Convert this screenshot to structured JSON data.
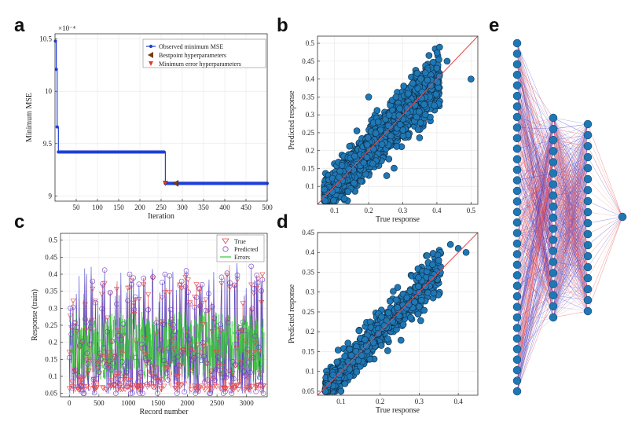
{
  "panels": {
    "a": "a",
    "b": "b",
    "c": "c",
    "d": "d",
    "e": "e"
  },
  "chart_data": [
    {
      "id": "a",
      "type": "line",
      "xlabel": "Iteration",
      "ylabel": "Minimum MSE",
      "y_multiplier": "×10⁻⁴",
      "xlim": [
        0,
        500
      ],
      "ylim": [
        8.95,
        10.55
      ],
      "xticks": [
        50,
        100,
        150,
        200,
        250,
        300,
        350,
        400,
        450,
        500
      ],
      "yticks": [
        9,
        9.5,
        10,
        10.5
      ],
      "grid": true,
      "legend_position": "top-right",
      "series": [
        {
          "name": "Observed minimum MSE",
          "color": "#1f3fd6",
          "marker": "circle",
          "steps": [
            [
              1,
              10.48
            ],
            [
              3,
              10.21
            ],
            [
              5,
              9.66
            ],
            [
              8,
              9.42
            ],
            [
              260,
              9.12
            ],
            [
              500,
              9.12
            ]
          ]
        },
        {
          "name": "Bestpoint hyperparameters",
          "color": "#7a3b12",
          "marker": "triangle-left",
          "points": [
            [
              285,
              9.12
            ]
          ]
        },
        {
          "name": "Minimum error hyperparameters",
          "color": "#e23b2a",
          "marker": "triangle-down",
          "points": [
            [
              260,
              9.12
            ]
          ]
        }
      ]
    },
    {
      "id": "b",
      "type": "scatter",
      "xlabel": "True response",
      "ylabel": "Predicted response",
      "xlim": [
        0.05,
        0.52
      ],
      "ylim": [
        0.05,
        0.52
      ],
      "xticks": [
        0.1,
        0.2,
        0.3,
        0.4,
        0.5
      ],
      "yticks": [
        0.1,
        0.15,
        0.2,
        0.25,
        0.3,
        0.35,
        0.4,
        0.45,
        0.5
      ],
      "grid": true,
      "point_color": "#1f77b4",
      "reference_line": "y=x",
      "reference_color": "#e8474a",
      "n_points": 2400,
      "points_outlier": [
        [
          0.5,
          0.4
        ],
        [
          0.43,
          0.45
        ],
        [
          0.4,
          0.43
        ],
        [
          0.28,
          0.35
        ],
        [
          0.2,
          0.35
        ]
      ]
    },
    {
      "id": "c",
      "type": "line",
      "xlabel": "Record number",
      "ylabel": "Response (train)",
      "xlim": [
        -150,
        3350
      ],
      "ylim": [
        0.04,
        0.52
      ],
      "xticks": [
        0,
        500,
        1000,
        1500,
        2000,
        2500,
        3000
      ],
      "yticks": [
        0.05,
        0.1,
        0.15,
        0.2,
        0.25,
        0.3,
        0.35,
        0.4,
        0.45,
        0.5
      ],
      "grid": true,
      "legend_position": "top-right",
      "series": [
        {
          "name": "True",
          "color": "#e8474a",
          "marker": "triangle-down"
        },
        {
          "name": "Predicted",
          "color": "#7b3fc4",
          "marker": "circle"
        },
        {
          "name": "Errors",
          "color": "#35c435",
          "marker": "line"
        }
      ],
      "n_records": 3300
    },
    {
      "id": "d",
      "type": "scatter",
      "xlabel": "True response",
      "ylabel": "Predicted response",
      "xlim": [
        0.04,
        0.45
      ],
      "ylim": [
        0.04,
        0.45
      ],
      "xticks": [
        0.1,
        0.2,
        0.3,
        0.4
      ],
      "yticks": [
        0.05,
        0.1,
        0.15,
        0.2,
        0.25,
        0.3,
        0.35,
        0.4,
        0.45
      ],
      "grid": true,
      "point_color": "#1f77b4",
      "reference_line": "y=x",
      "reference_color": "#e8474a",
      "n_points": 850,
      "points_outlier": [
        [
          0.42,
          0.4
        ],
        [
          0.4,
          0.41
        ],
        [
          0.38,
          0.42
        ],
        [
          0.35,
          0.38
        ],
        [
          0.1,
          0.05
        ]
      ]
    },
    {
      "id": "e",
      "type": "diagram",
      "description_layers": [
        34,
        19,
        18,
        1
      ],
      "node_color": "#1f77b4",
      "edge_colors": [
        "#e8474a",
        "#3b3fd0"
      ]
    }
  ]
}
